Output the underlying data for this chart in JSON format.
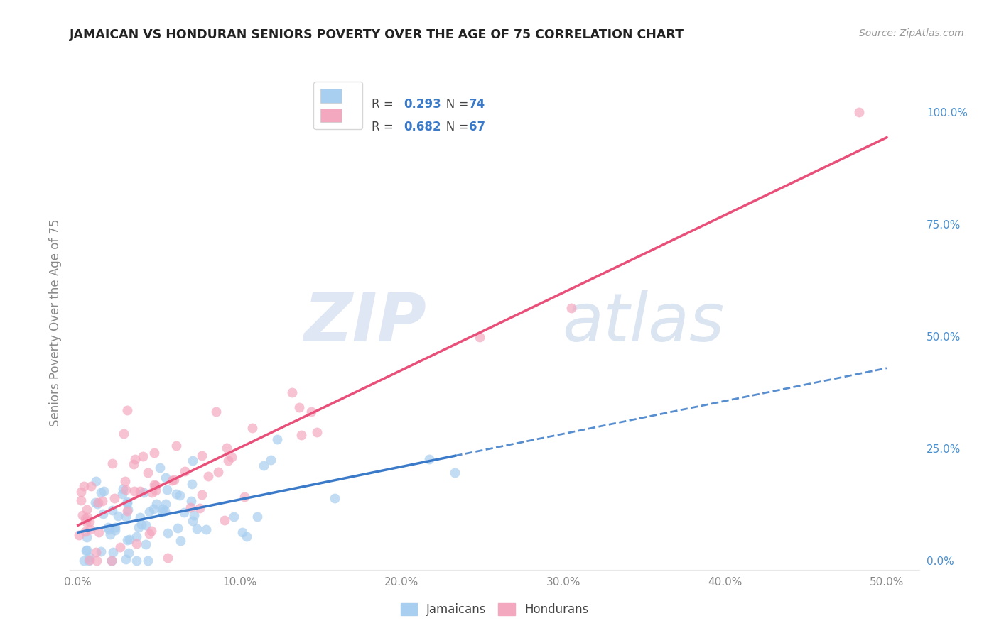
{
  "title": "JAMAICAN VS HONDURAN SENIORS POVERTY OVER THE AGE OF 75 CORRELATION CHART",
  "source": "Source: ZipAtlas.com",
  "ylabel": "Seniors Poverty Over the Age of 75",
  "xlabel_ticks": [
    "0.0%",
    "10.0%",
    "20.0%",
    "30.0%",
    "40.0%",
    "50.0%"
  ],
  "xlabel_vals": [
    0.0,
    0.1,
    0.2,
    0.3,
    0.4,
    0.5
  ],
  "ylabel_ticks": [
    "0.0%",
    "25.0%",
    "50.0%",
    "75.0%",
    "100.0%"
  ],
  "ylabel_vals": [
    0.0,
    0.25,
    0.5,
    0.75,
    1.0
  ],
  "xlim": [
    -0.005,
    0.52
  ],
  "ylim": [
    -0.02,
    1.08
  ],
  "blue_color": "#A8CEF0",
  "pink_color": "#F4A8C0",
  "blue_line_color": "#3A7AC8",
  "pink_line_color": "#E8507A",
  "blue_r": 0.293,
  "blue_n": 74,
  "pink_r": 0.682,
  "pink_n": 67,
  "legend_label_blue": "Jamaicans",
  "legend_label_pink": "Hondurans",
  "grid_color": "#E8E8E8",
  "background_color": "#FFFFFF",
  "watermark_zip": "ZIP",
  "watermark_atlas": "atlas",
  "watermark_color_zip": "#C8D8EC",
  "watermark_color_atlas": "#B8CCE4",
  "right_axis_color": "#4A90D0",
  "title_color": "#222222",
  "source_color": "#999999",
  "tick_color": "#888888",
  "legend_text_color": "#444444",
  "legend_value_color": "#3A7AC8",
  "scatter_size": 100,
  "scatter_alpha": 0.7
}
